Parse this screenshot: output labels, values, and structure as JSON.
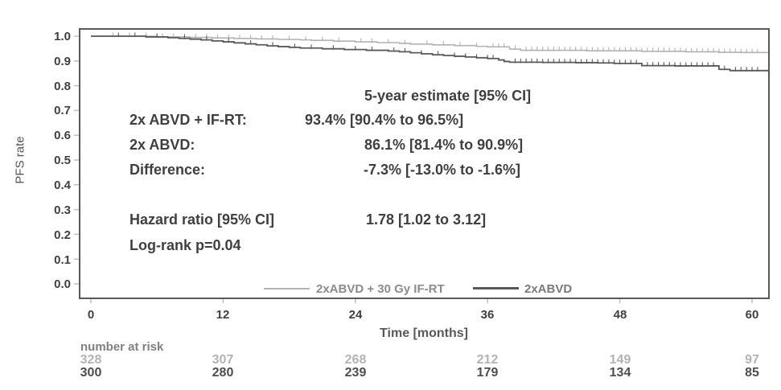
{
  "chart_data": {
    "type": "line",
    "subtype": "kaplan-meier-step-curves",
    "title": "",
    "xlabel": "Time [months]",
    "ylabel": "PFS rate",
    "xlim": [
      0,
      61.5
    ],
    "ylim": [
      0.0,
      1.0
    ],
    "grid": false,
    "legend_position": "inside-bottom-center",
    "x_ticks": [
      "0",
      "12",
      "24",
      "36",
      "48",
      "60"
    ],
    "x_tick_months": [
      0,
      12,
      24,
      36,
      48,
      60
    ],
    "y_ticks": [
      "1.0",
      "0.9",
      "0.8",
      "0.7",
      "0.6",
      "0.5",
      "0.4",
      "0.3",
      "0.2",
      "0.1",
      "0.0"
    ],
    "series": [
      {
        "name": "2xABVD + 30 Gy IF-RT",
        "color": "#b2b2b2",
        "label_color": "#8c8c8c",
        "stroke_width": 1.6,
        "steps": [
          [
            0,
            1.0
          ],
          [
            6,
            0.997
          ],
          [
            9,
            0.995
          ],
          [
            11,
            0.993
          ],
          [
            13,
            0.991
          ],
          [
            15,
            0.989
          ],
          [
            17,
            0.987
          ],
          [
            19,
            0.985
          ],
          [
            20,
            0.983
          ],
          [
            22,
            0.98
          ],
          [
            24,
            0.977
          ],
          [
            26,
            0.974
          ],
          [
            28,
            0.971
          ],
          [
            29,
            0.968
          ],
          [
            31,
            0.965
          ],
          [
            33,
            0.962
          ],
          [
            35,
            0.959
          ],
          [
            36,
            0.957
          ],
          [
            38,
            0.948
          ],
          [
            39,
            0.943
          ],
          [
            45,
            0.941
          ],
          [
            50,
            0.939
          ],
          [
            54,
            0.937
          ],
          [
            57,
            0.935
          ],
          [
            59,
            0.934
          ]
        ],
        "censor_months": [
          2,
          3.5,
          5,
          6.5,
          7.5,
          8.5,
          9.5,
          10.5,
          11.5,
          12.5,
          13.5,
          14.5,
          15.5,
          16.5,
          18,
          19.5,
          21,
          22.5,
          24.5,
          25.5,
          27,
          28.5,
          30.5,
          32,
          33.5,
          35,
          36.5,
          37,
          37.5,
          38.5,
          39.5,
          40,
          40.5,
          41,
          41.5,
          42,
          42.5,
          43,
          43.5,
          44,
          44.5,
          45,
          45.5,
          46,
          46.5,
          47,
          47.5,
          48,
          48.5,
          49,
          49.5,
          50,
          50.5,
          51,
          51.5,
          52,
          52.5,
          53,
          53.5,
          54,
          54.5,
          55,
          55.5,
          56,
          56.5,
          57,
          57.5,
          58,
          58.5,
          59,
          59.5,
          60,
          60.5
        ]
      },
      {
        "name": "2xABVD",
        "color": "#595959",
        "label_color": "#7a7a7a",
        "stroke_width": 1.8,
        "steps": [
          [
            0,
            1.0
          ],
          [
            5,
            0.997
          ],
          [
            7,
            0.994
          ],
          [
            8,
            0.991
          ],
          [
            9,
            0.988
          ],
          [
            10,
            0.985
          ],
          [
            11,
            0.981
          ],
          [
            12,
            0.977
          ],
          [
            13,
            0.973
          ],
          [
            14,
            0.969
          ],
          [
            15,
            0.965
          ],
          [
            16,
            0.961
          ],
          [
            17,
            0.958
          ],
          [
            18,
            0.955
          ],
          [
            19,
            0.952
          ],
          [
            21,
            0.949
          ],
          [
            23,
            0.946
          ],
          [
            25,
            0.943
          ],
          [
            27,
            0.94
          ],
          [
            28,
            0.937
          ],
          [
            29,
            0.933
          ],
          [
            30,
            0.929
          ],
          [
            31,
            0.925
          ],
          [
            32,
            0.922
          ],
          [
            33,
            0.919
          ],
          [
            34,
            0.916
          ],
          [
            35,
            0.913
          ],
          [
            36,
            0.91
          ],
          [
            37,
            0.904
          ],
          [
            37.5,
            0.898
          ],
          [
            38,
            0.895
          ],
          [
            41,
            0.894
          ],
          [
            44,
            0.893
          ],
          [
            46,
            0.892
          ],
          [
            47.5,
            0.89
          ],
          [
            50,
            0.881
          ],
          [
            53,
            0.88
          ],
          [
            57,
            0.866
          ],
          [
            58,
            0.861
          ]
        ],
        "censor_months": [
          2.5,
          4,
          6,
          8.5,
          10.5,
          12.5,
          14.5,
          16.5,
          18.5,
          20,
          22,
          24,
          25.5,
          27.5,
          28.5,
          30,
          31.5,
          33,
          34,
          35,
          36,
          36.5,
          38.5,
          39,
          39.5,
          40,
          40.5,
          41,
          41.5,
          42,
          42.5,
          43,
          43.5,
          44,
          44.5,
          45,
          45.5,
          46,
          46.5,
          47,
          47.5,
          48,
          48.5,
          49,
          49.5,
          50.5,
          51,
          51.5,
          52,
          52.5,
          53,
          53.5,
          54,
          54.5,
          55,
          55.5,
          56,
          56.5,
          57.5,
          58.5,
          59,
          59.5,
          60,
          60.5
        ]
      }
    ],
    "number_at_risk": {
      "label": "number at risk",
      "rows": [
        {
          "series": "2xABVD + 30 Gy IF-RT",
          "color": "#b3b3b3",
          "values": [
            "328",
            "307",
            "268",
            "212",
            "149",
            "97"
          ]
        },
        {
          "series": "2xABVD",
          "color": "#4d4d4d",
          "values": [
            "300",
            "280",
            "239",
            "179",
            "134",
            "85"
          ]
        }
      ]
    }
  },
  "stats_panel": {
    "header": "5-year estimate [95% CI]",
    "rows": [
      {
        "label": "2x ABVD + IF-RT:",
        "value": "93.4% [90.4% to 96.5%]"
      },
      {
        "label": "2x ABVD:",
        "value": "86.1% [81.4% to 90.9%]"
      },
      {
        "label": "Difference:",
        "value": "-7.3% [-13.0% to -1.6%]"
      }
    ],
    "hazard_label": "Hazard ratio [95% CI]",
    "hazard_value": "1.78 [1.02 to 3.12]",
    "logrank": "Log-rank p=0.04"
  },
  "colors": {
    "frame": "#595959",
    "axis_tick_marks": "#c0c0c0",
    "text_dark": "#3f3f3f"
  }
}
